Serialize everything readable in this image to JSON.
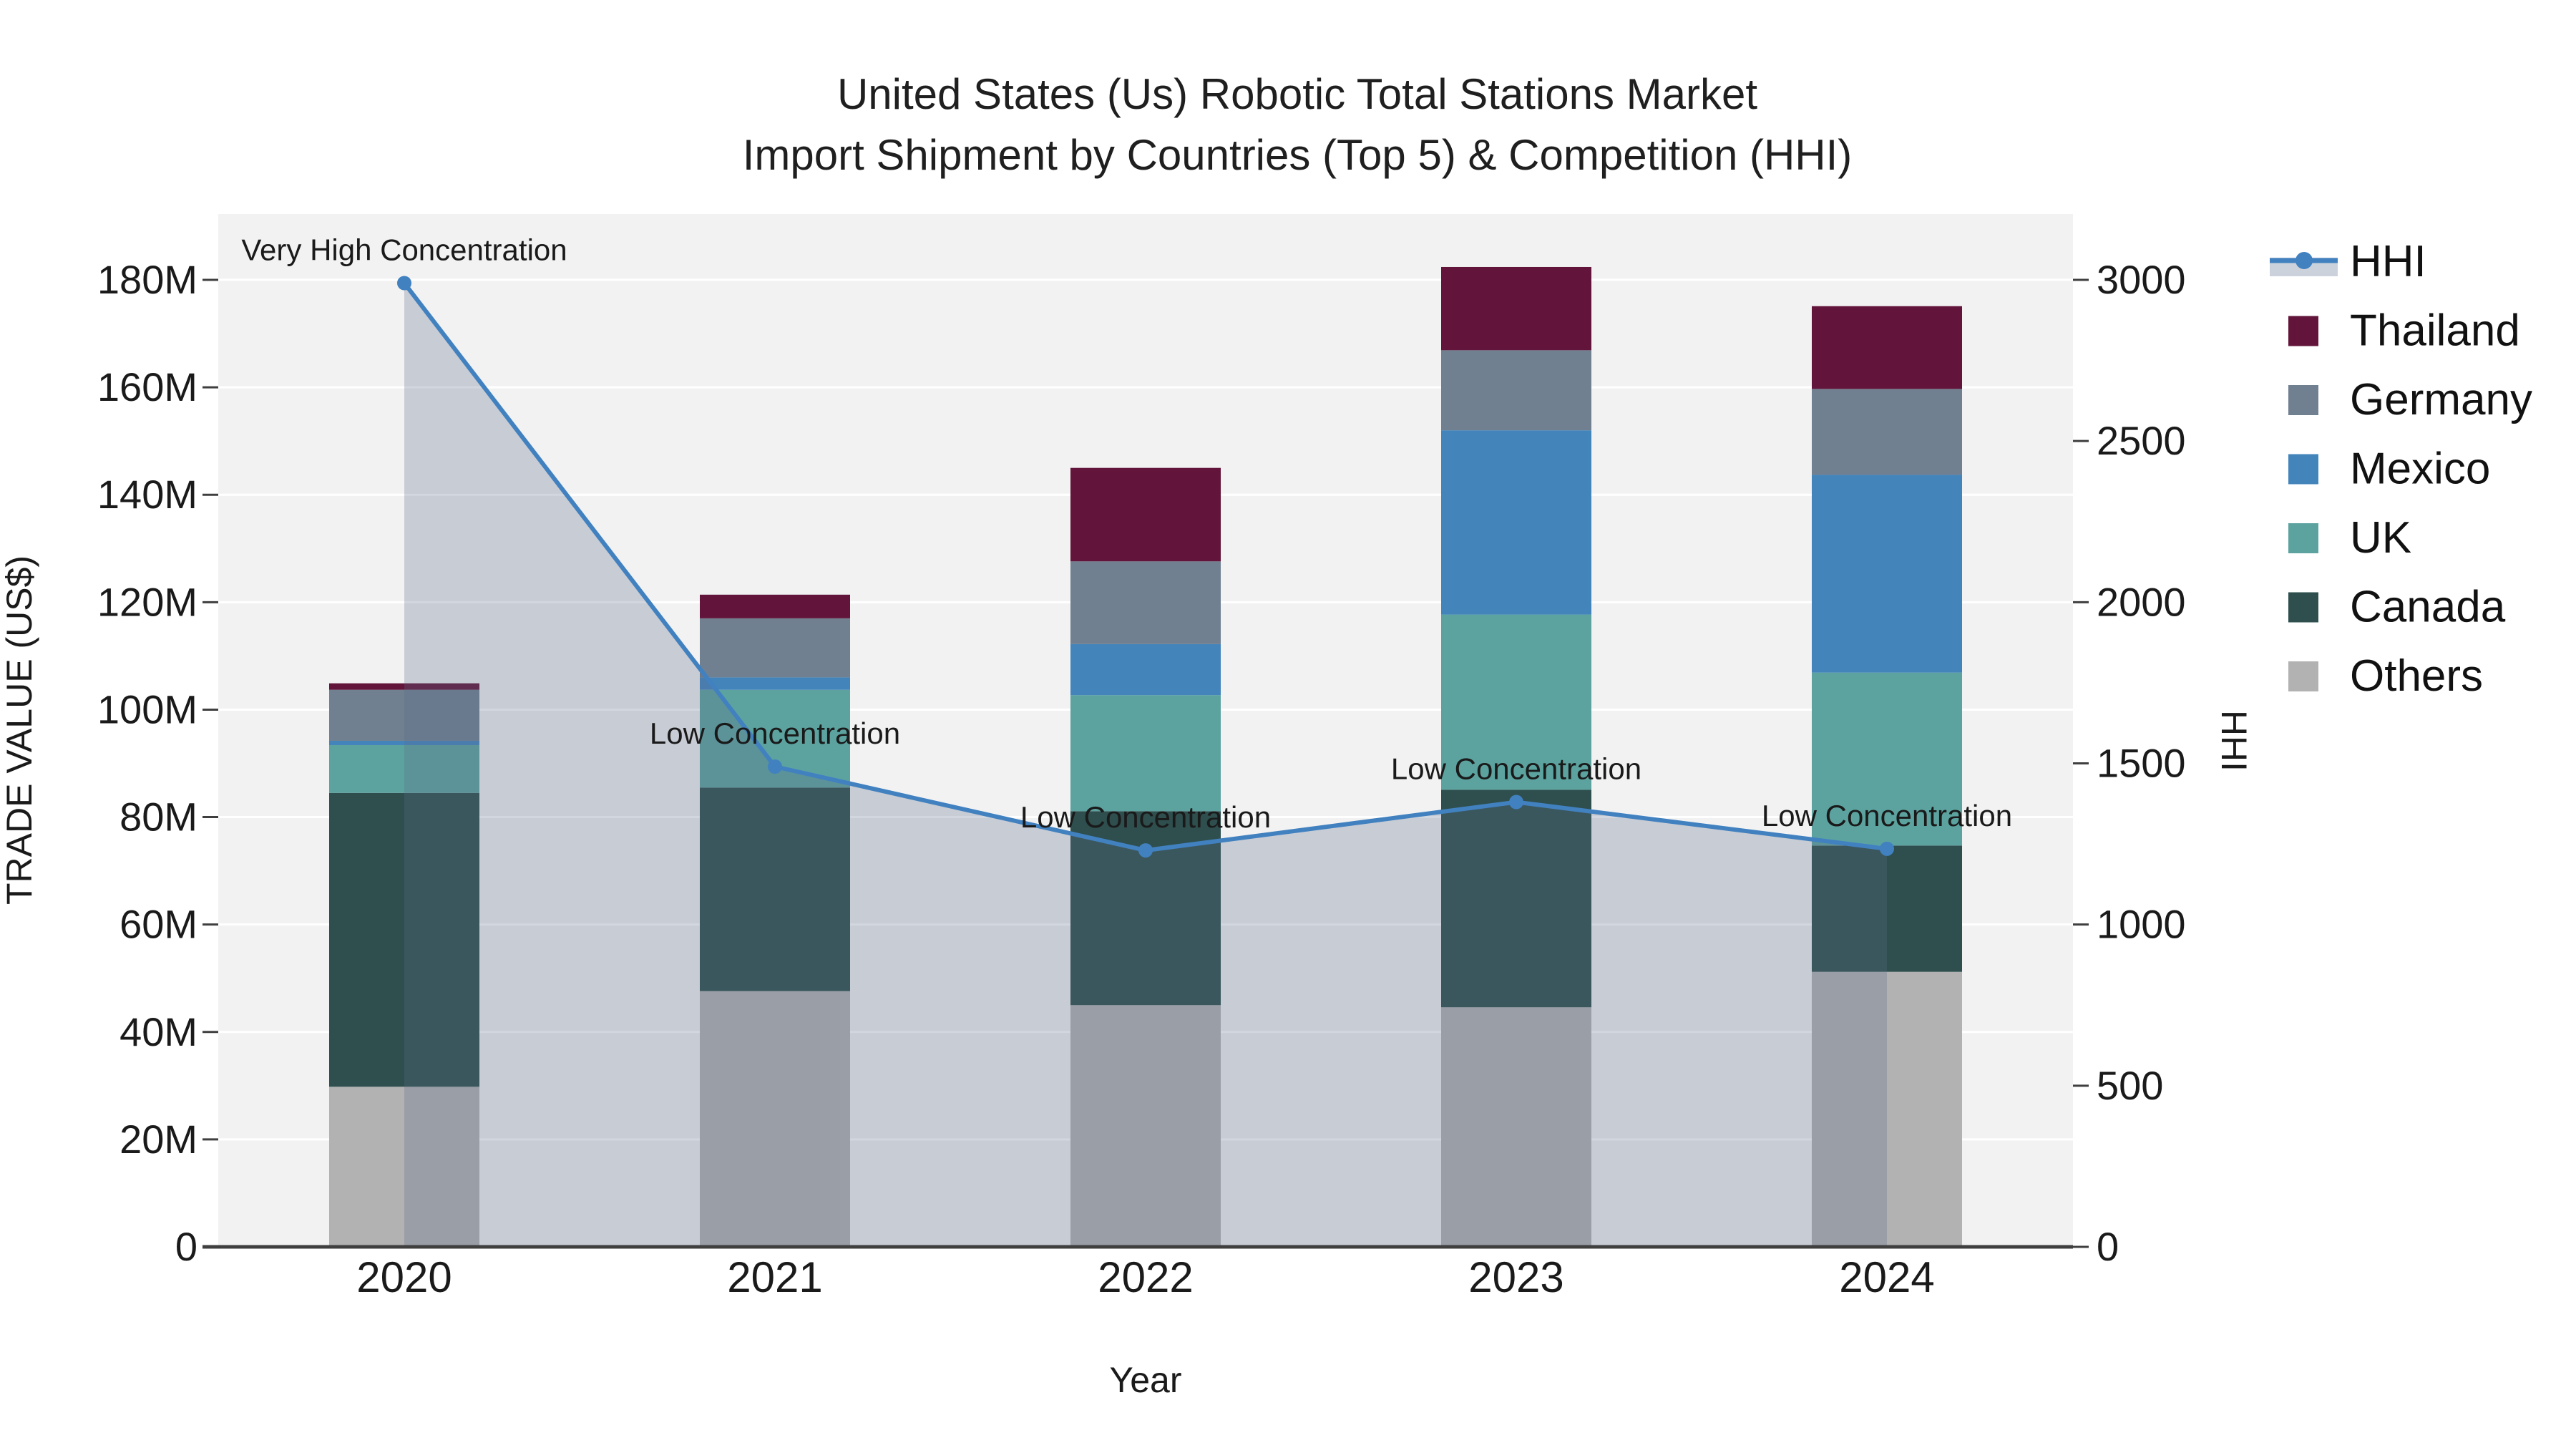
{
  "title": {
    "line1": "United States (Us) Robotic Total Stations Market",
    "line2": "Import Shipment by Countries (Top 5) & Competition (HHI)"
  },
  "chart_data": {
    "type": "bar+line combo (stacked bars, dual y-axes)",
    "categories": [
      "2020",
      "2021",
      "2022",
      "2023",
      "2024"
    ],
    "x_label": "Year",
    "y_left": {
      "label": "TRADE VALUE (US$)",
      "unit": "M US$",
      "ticks": [
        0,
        20,
        40,
        60,
        80,
        100,
        120,
        140,
        160,
        180
      ],
      "tick_suffix": "M",
      "range": [
        0,
        192
      ]
    },
    "y_right": {
      "label": "HHI",
      "ticks": [
        0,
        500,
        1000,
        1500,
        2000,
        2500,
        3000
      ],
      "range": [
        0,
        3200
      ]
    },
    "bar_series_bottom_to_top": [
      {
        "name": "Others",
        "color": "#b2b2b2",
        "values": [
          29.8,
          47.6,
          45.0,
          44.6,
          51.2
        ]
      },
      {
        "name": "Canada",
        "color": "#2e4f4e",
        "values": [
          54.7,
          37.9,
          36.1,
          40.5,
          23.5
        ]
      },
      {
        "name": "UK",
        "color": "#5ca3a0",
        "values": [
          8.9,
          18.2,
          21.6,
          32.6,
          32.2
        ]
      },
      {
        "name": "Mexico",
        "color": "#4384bb",
        "values": [
          0.8,
          2.3,
          9.5,
          34.3,
          36.8
        ]
      },
      {
        "name": "Germany",
        "color": "#708090",
        "values": [
          9.5,
          11.0,
          15.4,
          14.9,
          16.0
        ]
      },
      {
        "name": "Thailand",
        "color": "#62143a",
        "values": [
          1.2,
          4.4,
          17.4,
          15.5,
          15.4
        ]
      }
    ],
    "bar_totals": [
      104.9,
      121.4,
      145.0,
      182.4,
      175.1
    ],
    "line_series": {
      "name": "HHI",
      "values": [
        2990,
        1490,
        1230,
        1380,
        1235
      ],
      "color": "#4181c0",
      "area_fill": "rgba(93,107,135,0.28)"
    },
    "annotations": [
      {
        "x": "2020",
        "text": "Very High Concentration"
      },
      {
        "x": "2021",
        "text": "Low Concentration"
      },
      {
        "x": "2022",
        "text": "Low Concentration"
      },
      {
        "x": "2023",
        "text": "Low Concentration"
      },
      {
        "x": "2024",
        "text": "Low Concentration"
      }
    ],
    "grid": true,
    "legend_position": "right"
  },
  "legend": {
    "items": [
      {
        "label": "HHI",
        "type": "line",
        "color": "#4181c0",
        "band_color": "#ccd2dc"
      },
      {
        "label": "Thailand",
        "type": "swatch",
        "color": "#62143a"
      },
      {
        "label": "Germany",
        "type": "swatch",
        "color": "#708090"
      },
      {
        "label": "Mexico",
        "type": "swatch",
        "color": "#4384bb"
      },
      {
        "label": "UK",
        "type": "swatch",
        "color": "#5ca3a0"
      },
      {
        "label": "Canada",
        "type": "swatch",
        "color": "#2e4f4e"
      },
      {
        "label": "Others",
        "type": "swatch",
        "color": "#b2b2b2"
      }
    ]
  },
  "colors": {
    "plot_bg": "#f2f2f2",
    "grid": "#ffffff",
    "axis_line": "#3f3f3f",
    "text": "#1a1a1a",
    "annotation_text": "#1a1a1a"
  }
}
